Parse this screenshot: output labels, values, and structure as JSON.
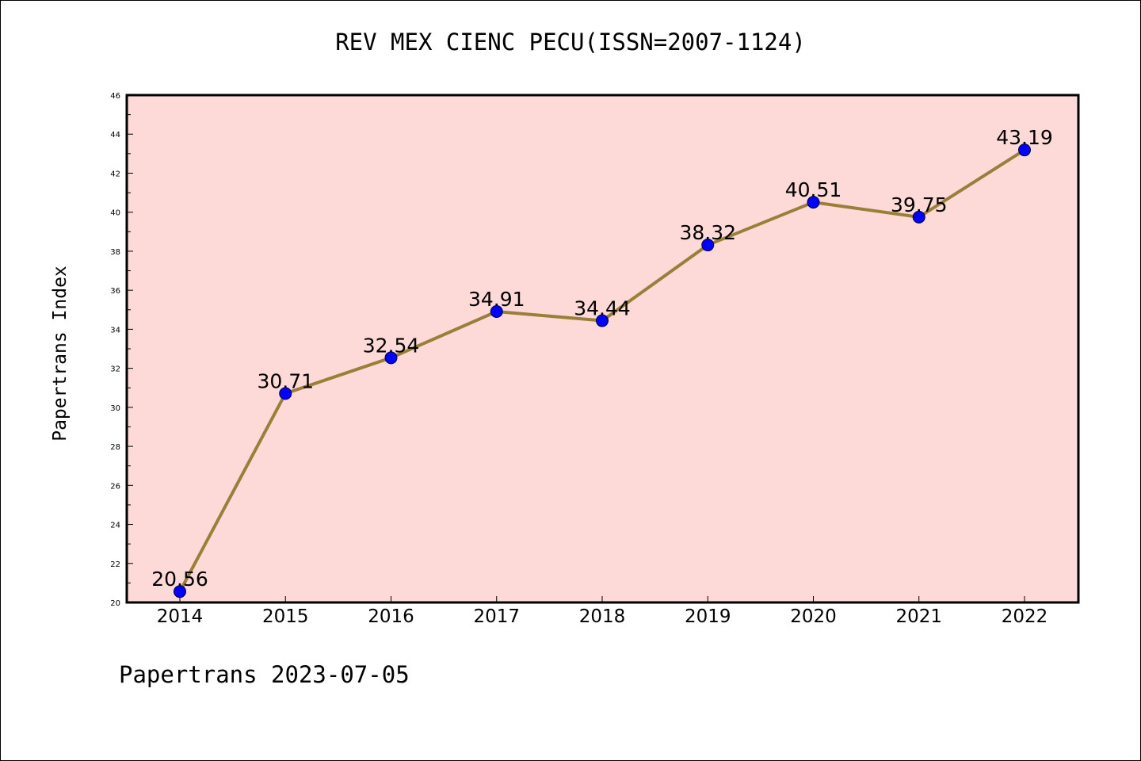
{
  "footer_text": "Papertrans 2023-07-05",
  "colors": {
    "plot_background": "#fddad7",
    "line": "#9a7f3a",
    "marker": "#0000ff",
    "axis": "#000000"
  },
  "chart_data": {
    "type": "line",
    "title": "REV MEX CIENC PECU(ISSN=2007-1124)",
    "xlabel": "",
    "ylabel": "Papertrans Index",
    "x": [
      "2014",
      "2015",
      "2016",
      "2017",
      "2018",
      "2019",
      "2020",
      "2021",
      "2022"
    ],
    "series": [
      {
        "values": [
          20.56,
          30.71,
          32.54,
          34.91,
          34.44,
          38.32,
          40.51,
          39.75,
          43.19
        ],
        "labels": [
          "20.56",
          "30.71",
          "32.54",
          "34.91",
          "34.44",
          "38.32",
          "40.51",
          "39.75",
          "43.19"
        ]
      }
    ],
    "ylim": [
      20,
      46
    ],
    "yticks": [
      "20",
      "22",
      "24",
      "26",
      "28",
      "30",
      "32",
      "34",
      "36",
      "38",
      "40",
      "42",
      "44",
      "46"
    ],
    "grid": false,
    "legend": "none",
    "markers": "filled circles"
  }
}
